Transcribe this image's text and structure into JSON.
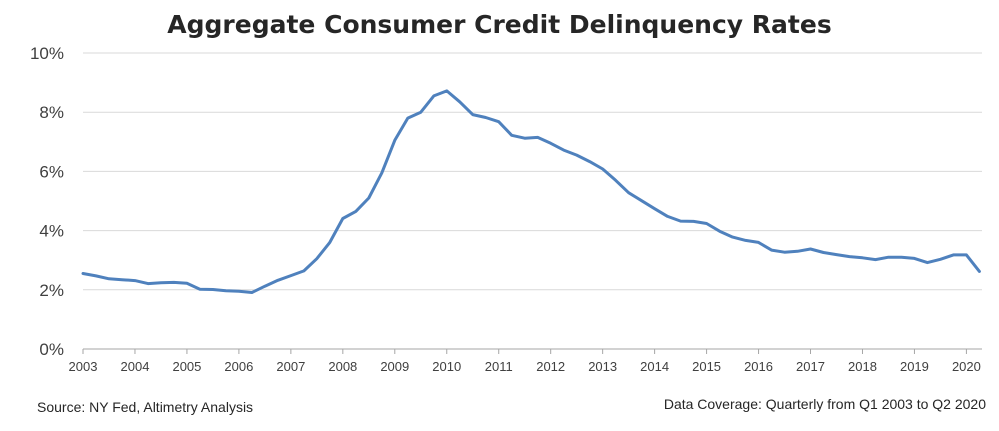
{
  "chart_data": {
    "type": "line",
    "title": "Aggregate Consumer Credit Delinquency Rates",
    "xlabel": "",
    "ylabel": "",
    "xlim": [
      2003,
      2020.3
    ],
    "ylim": [
      0,
      10
    ],
    "yticks": [
      0,
      2,
      4,
      6,
      8,
      10
    ],
    "ytick_labels": [
      "0%",
      "2%",
      "4%",
      "6%",
      "8%",
      "10%"
    ],
    "xtick_labels": [
      "2003",
      "2004",
      "2005",
      "2006",
      "2007",
      "2008",
      "2009",
      "2010",
      "2011",
      "2012",
      "2013",
      "2014",
      "2015",
      "2016",
      "2017",
      "2018",
      "2019",
      "2020"
    ],
    "grid": true,
    "legend": "none",
    "series": [
      {
        "color": "#4f81bd",
        "x": [
          2003.0,
          2003.25,
          2003.5,
          2003.75,
          2004.0,
          2004.25,
          2004.5,
          2004.75,
          2005.0,
          2005.25,
          2005.5,
          2005.75,
          2006.0,
          2006.25,
          2006.5,
          2006.75,
          2007.0,
          2007.25,
          2007.5,
          2007.75,
          2008.0,
          2008.25,
          2008.5,
          2008.75,
          2009.0,
          2009.25,
          2009.5,
          2009.75,
          2010.0,
          2010.25,
          2010.5,
          2010.75,
          2011.0,
          2011.25,
          2011.5,
          2011.75,
          2012.0,
          2012.25,
          2012.5,
          2012.75,
          2013.0,
          2013.25,
          2013.5,
          2013.75,
          2014.0,
          2014.25,
          2014.5,
          2014.75,
          2015.0,
          2015.25,
          2015.5,
          2015.75,
          2016.0,
          2016.25,
          2016.5,
          2016.75,
          2017.0,
          2017.25,
          2017.5,
          2017.75,
          2018.0,
          2018.25,
          2018.5,
          2018.75,
          2019.0,
          2019.25,
          2019.5,
          2019.75,
          2020.0,
          2020.25
        ],
        "y": [
          2.55,
          2.47,
          2.37,
          2.34,
          2.31,
          2.21,
          2.24,
          2.25,
          2.22,
          2.02,
          2.01,
          1.97,
          1.95,
          1.91,
          2.12,
          2.32,
          2.48,
          2.64,
          3.05,
          3.6,
          4.41,
          4.65,
          5.1,
          5.95,
          7.05,
          7.8,
          8.0,
          8.55,
          8.72,
          8.35,
          7.92,
          7.82,
          7.68,
          7.22,
          7.12,
          7.15,
          6.95,
          6.72,
          6.55,
          6.33,
          6.08,
          5.7,
          5.28,
          5.01,
          4.74,
          4.48,
          4.32,
          4.31,
          4.24,
          3.98,
          3.78,
          3.67,
          3.6,
          3.34,
          3.27,
          3.3,
          3.38,
          3.26,
          3.19,
          3.12,
          3.08,
          3.02,
          3.1,
          3.1,
          3.06,
          2.92,
          3.03,
          3.18,
          3.18,
          2.62
        ]
      }
    ],
    "notes": {
      "source": "Source: NY Fed, Altimetry Analysis",
      "coverage": "Data Coverage: Quarterly from Q1 2003 to Q2 2020"
    }
  }
}
